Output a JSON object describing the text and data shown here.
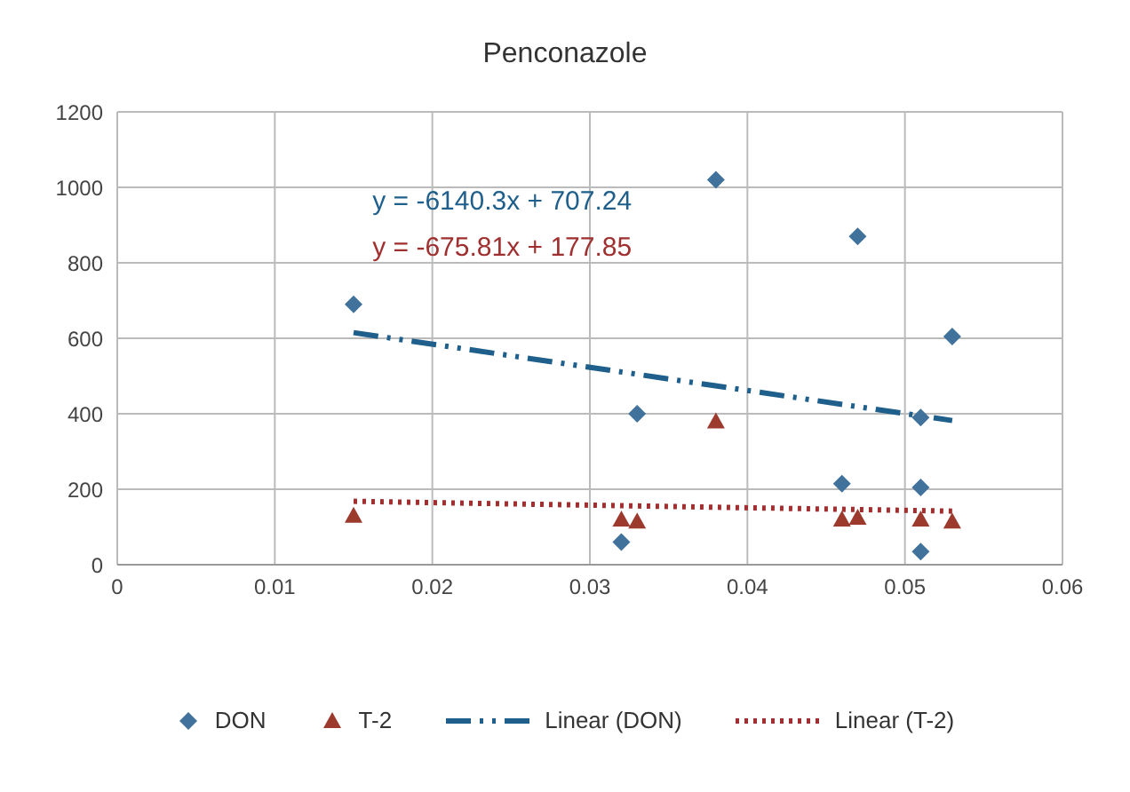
{
  "chart_data": {
    "type": "scatter",
    "title": "Penconazole",
    "xlim": [
      0,
      0.06
    ],
    "xticks": [
      0,
      0.01,
      0.02,
      0.03,
      0.04,
      0.05,
      0.06
    ],
    "ylim": [
      0,
      1200
    ],
    "yticks": [
      0,
      200,
      400,
      600,
      800,
      1000,
      1200
    ],
    "grid": true,
    "legend": "bottom",
    "series": [
      {
        "name": "DON",
        "marker": "diamond",
        "color": "#41729c",
        "x": [
          0.015,
          0.032,
          0.033,
          0.038,
          0.046,
          0.047,
          0.051,
          0.051,
          0.051,
          0.053
        ],
        "values": [
          690,
          60,
          400,
          1020,
          215,
          870,
          390,
          205,
          35,
          605
        ]
      },
      {
        "name": "T-2",
        "marker": "triangle",
        "color": "#9c3a2e",
        "x": [
          0.015,
          0.032,
          0.033,
          0.038,
          0.046,
          0.047,
          0.051,
          0.053
        ],
        "values": [
          130,
          120,
          115,
          380,
          120,
          125,
          120,
          115
        ]
      },
      {
        "name": "Linear (DON)",
        "type": "line",
        "line_style": "dashed",
        "color": "#1f5f8b",
        "x": [
          0.015,
          0.053
        ],
        "values": [
          615,
          382
        ]
      },
      {
        "name": "Linear (T-2)",
        "type": "line",
        "line_style": "dotted",
        "color": "#a03030",
        "x": [
          0.015,
          0.053
        ],
        "values": [
          168,
          142
        ]
      }
    ],
    "annotations": [
      "y = -6140.3x + 707.24",
      "y = -675.81x + 177.85"
    ]
  }
}
